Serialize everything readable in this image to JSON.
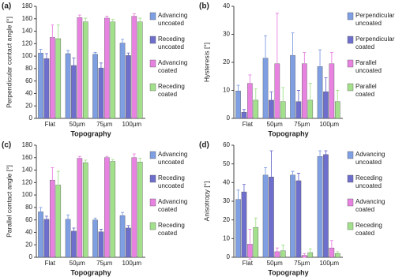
{
  "chart_data": [
    {
      "type": "bar",
      "panel": "(a)",
      "ylabel": "Perpendicular contact angle [°]",
      "xlabel": "Topography",
      "categories": [
        "Flat",
        "50µm",
        "75µm",
        "100µm"
      ],
      "series": [
        {
          "name": "Advancing uncoated",
          "color": "#7f9fe3",
          "values": [
            105,
            104,
            103,
            121
          ],
          "errors": [
            6,
            5,
            3,
            6
          ]
        },
        {
          "name": "Receding uncoated",
          "color": "#6e6fcc",
          "values": [
            96,
            85,
            81,
            101
          ],
          "errors": [
            8,
            12,
            8,
            4
          ]
        },
        {
          "name": "Advancing coated",
          "color": "#e882e0",
          "values": [
            130,
            162,
            161,
            164
          ],
          "errors": [
            20,
            4,
            3,
            4
          ]
        },
        {
          "name": "Receding coated",
          "color": "#a3e08c",
          "values": [
            128,
            155,
            155,
            155
          ],
          "errors": [
            22,
            6,
            4,
            6
          ]
        }
      ],
      "ylim": [
        0,
        180
      ],
      "yticks": [
        0,
        20,
        40,
        60,
        80,
        100,
        120,
        140,
        160,
        180
      ]
    },
    {
      "type": "bar",
      "panel": "(b)",
      "ylabel": "Hysteresis [°]",
      "xlabel": "Topography",
      "categories": [
        "Flat",
        "50µm",
        "75µm",
        "100µm"
      ],
      "series": [
        {
          "name": "Perpendicular uncoated",
          "color": "#7f9fe3",
          "values": [
            9.8,
            21.5,
            22.5,
            18.5
          ],
          "errors": [
            2,
            8,
            8,
            6
          ]
        },
        {
          "name": "Perpendicular coated",
          "color": "#6e6fcc",
          "values": [
            2.2,
            6.5,
            6,
            9.5
          ],
          "errors": [
            1,
            3,
            4,
            5
          ]
        },
        {
          "name": "Parallel uncoated",
          "color": "#e882e0",
          "values": [
            12.5,
            19.5,
            19.5,
            19.5
          ],
          "errors": [
            3,
            18,
            4,
            4
          ]
        },
        {
          "name": "Parallel coated",
          "color": "#a3e08c",
          "values": [
            6.5,
            6,
            6.5,
            6
          ],
          "errors": [
            4,
            5,
            6,
            4
          ]
        }
      ],
      "ylim": [
        0,
        40
      ],
      "yticks": [
        0,
        10,
        20,
        30,
        40
      ]
    },
    {
      "type": "bar",
      "panel": "(c)",
      "ylabel": "Parallel contact angle [°]",
      "xlabel": "Topography",
      "categories": [
        "Flat",
        "50µm",
        "75µm",
        "100µm"
      ],
      "series": [
        {
          "name": "Advancing uncoated",
          "color": "#7f9fe3",
          "values": [
            73,
            61,
            60,
            67
          ],
          "errors": [
            7,
            7,
            3,
            5
          ]
        },
        {
          "name": "Receding uncoated",
          "color": "#6e6fcc",
          "values": [
            61,
            42,
            41,
            47
          ],
          "errors": [
            5,
            5,
            4,
            4
          ]
        },
        {
          "name": "Advancing coated",
          "color": "#e882e0",
          "values": [
            124,
            159,
            160,
            160
          ],
          "errors": [
            20,
            3,
            2,
            6
          ]
        },
        {
          "name": "Receding coated",
          "color": "#a3e08c",
          "values": [
            116,
            152,
            154,
            153
          ],
          "errors": [
            22,
            4,
            3,
            6
          ]
        }
      ],
      "ylim": [
        0,
        180
      ],
      "yticks": [
        0,
        20,
        40,
        60,
        80,
        100,
        120,
        140,
        160,
        180
      ]
    },
    {
      "type": "bar",
      "panel": "(d)",
      "ylabel": "Anisotropy [°]",
      "xlabel": "Topography",
      "categories": [
        "Flat",
        "50µm",
        "75µm",
        "100µm"
      ],
      "series": [
        {
          "name": "Advancing uncoated",
          "color": "#7f9fe3",
          "values": [
            31,
            44,
            44,
            54
          ],
          "errors": [
            5,
            4,
            2,
            3
          ]
        },
        {
          "name": "Receding uncoated",
          "color": "#6e6fcc",
          "values": [
            35,
            43,
            41,
            55
          ],
          "errors": [
            4,
            14,
            4,
            2
          ]
        },
        {
          "name": "Advancing coated",
          "color": "#e882e0",
          "values": [
            7,
            3,
            1,
            5
          ],
          "errors": [
            8,
            2,
            1,
            4
          ]
        },
        {
          "name": "Receding coated",
          "color": "#a3e08c",
          "values": [
            16,
            3.5,
            2.5,
            2
          ],
          "errors": [
            5,
            3,
            2,
            1
          ]
        }
      ],
      "ylim": [
        0,
        60
      ],
      "yticks": [
        0,
        10,
        20,
        30,
        40,
        50,
        60
      ]
    }
  ]
}
